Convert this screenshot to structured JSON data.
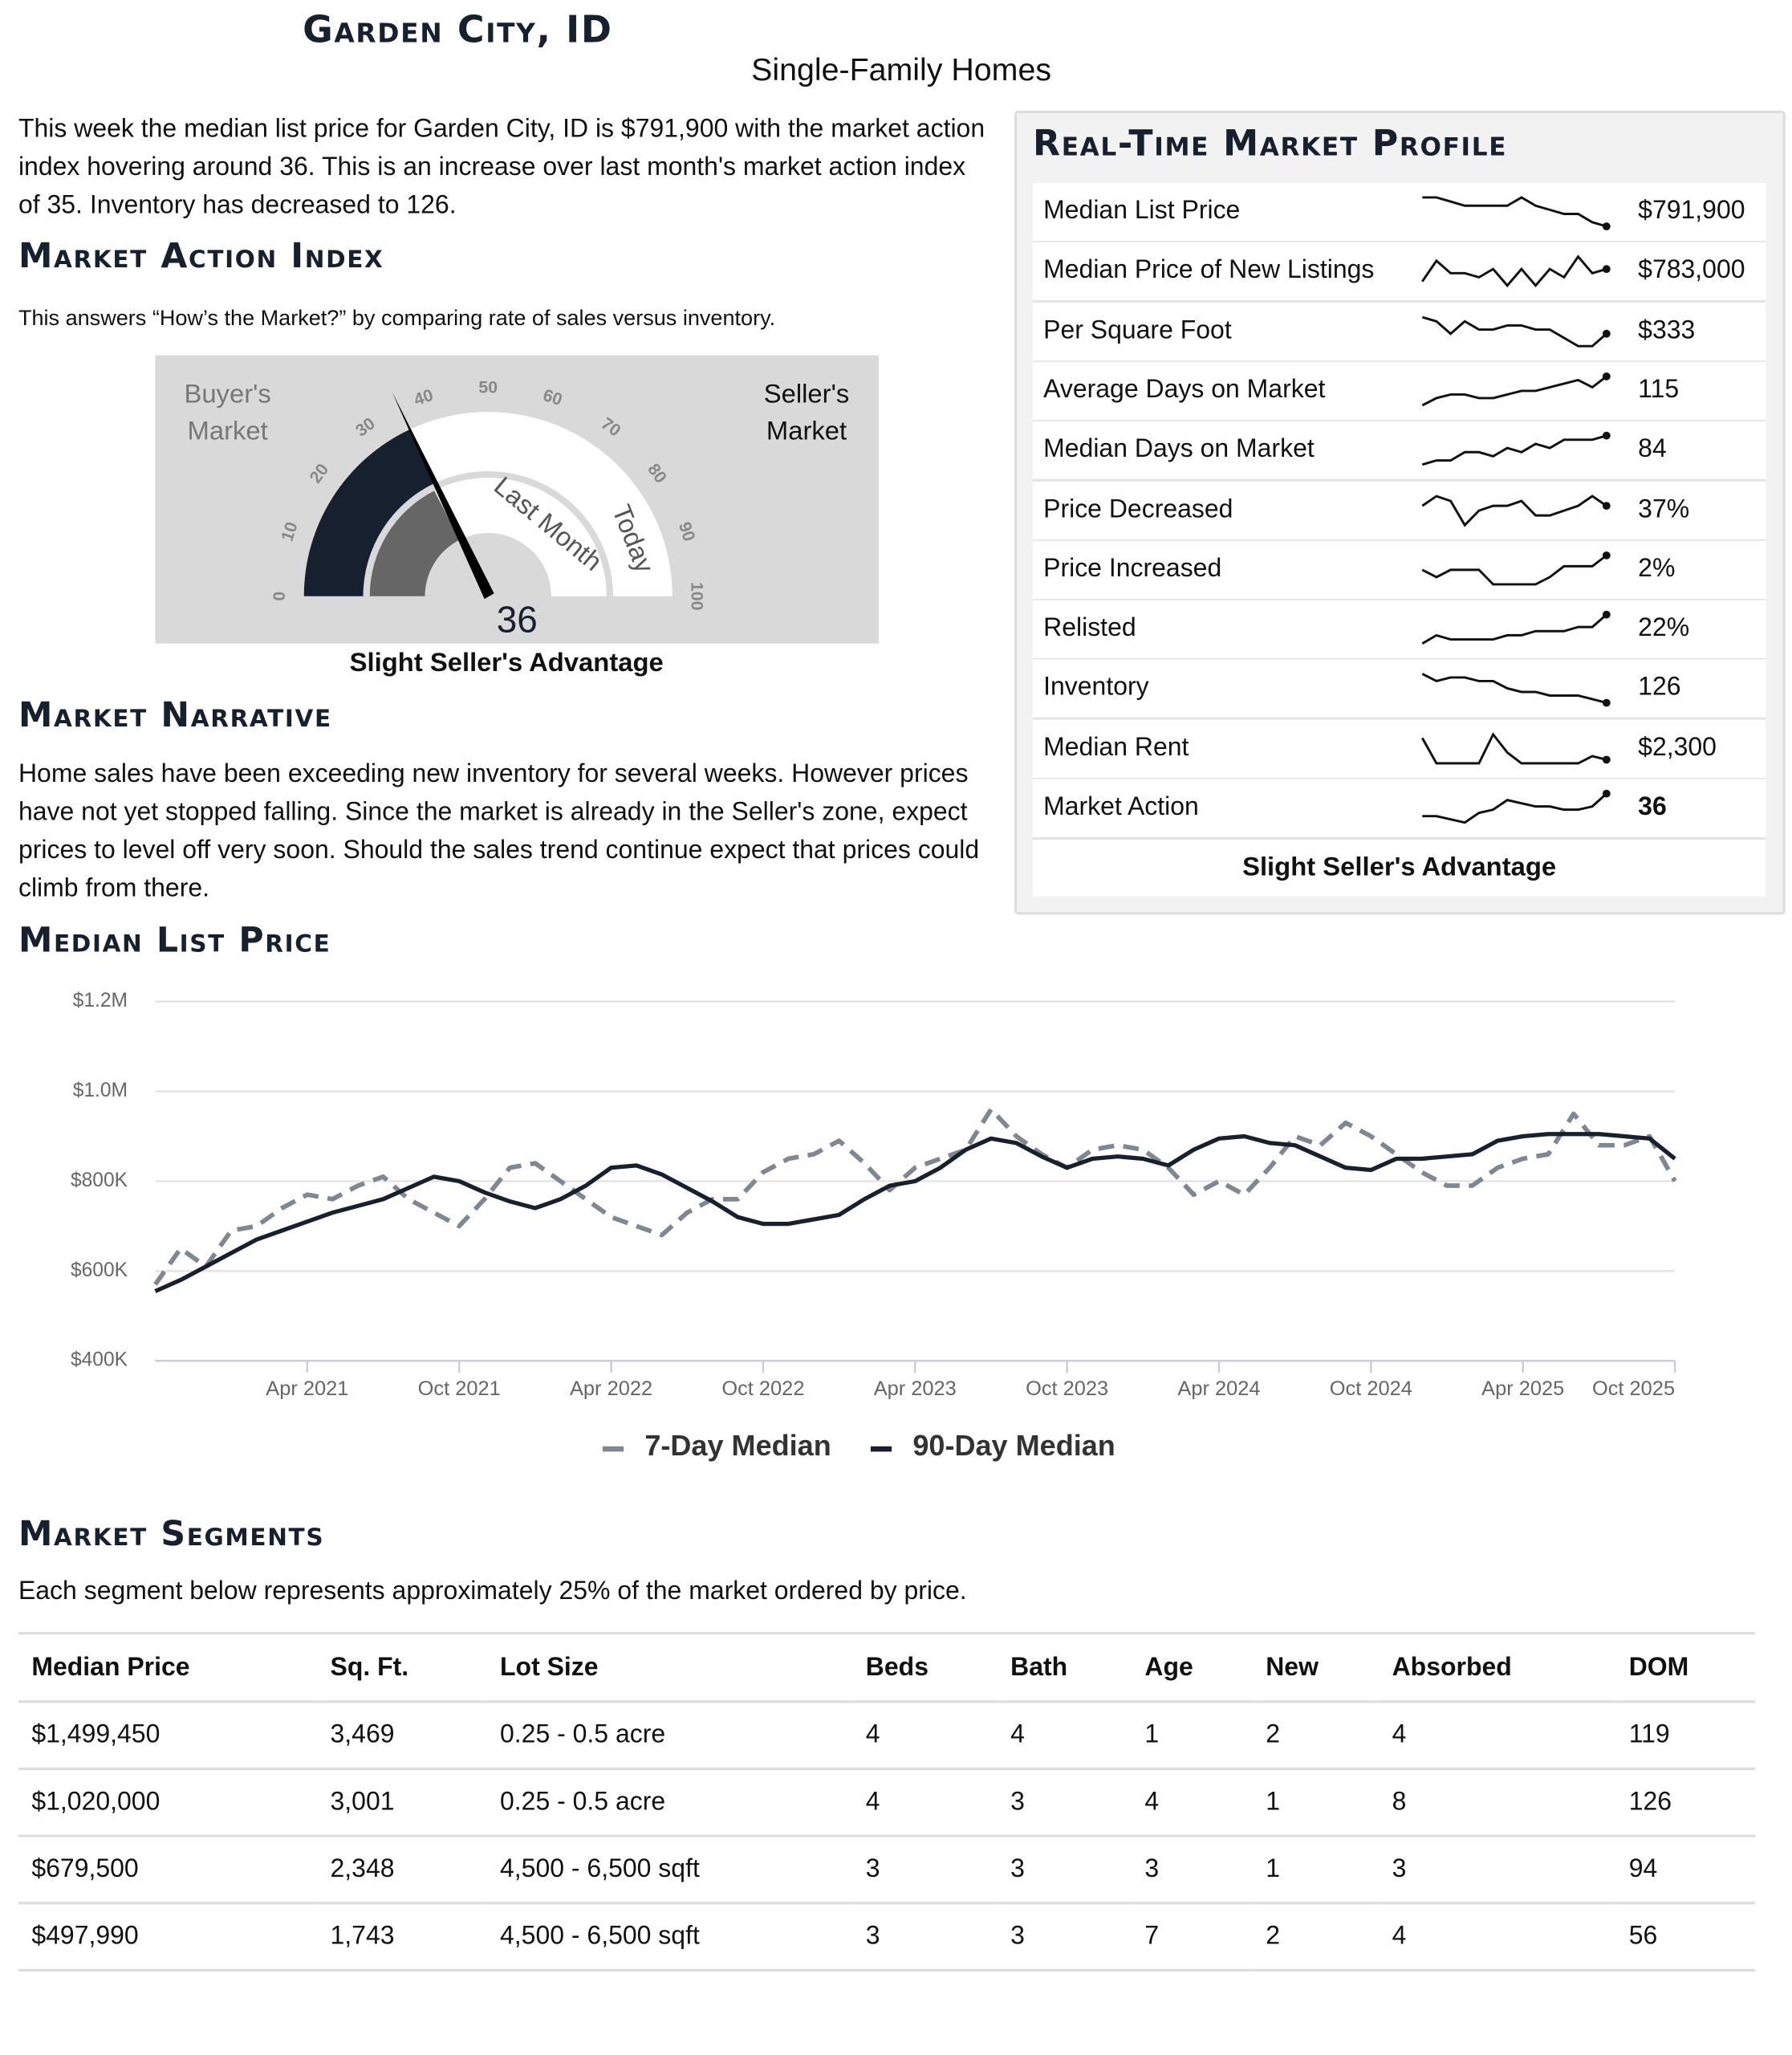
{
  "header": {
    "title": "Garden City, ID",
    "subtitle": "Single-Family Homes"
  },
  "intro": "This week the median list price for Garden City, ID is $791,900 with the market action index hovering around 36. This is an increase over last month's market action index of 35. Inventory has decreased to 126.",
  "market_action_index": {
    "heading": "Market Action Index",
    "description": "This answers “How’s the Market?” by comparing rate of sales versus inventory.",
    "gauge": {
      "buyers_label": "Buyer's Market",
      "sellers_label": "Seller's Market",
      "ticks": [
        0,
        10,
        20,
        30,
        40,
        50,
        60,
        70,
        80,
        90,
        100
      ],
      "last_month_label": "Last Month",
      "today_label": "Today",
      "last_month_value": 35,
      "value": 36
    },
    "verdict": "Slight Seller's Advantage"
  },
  "narrative": {
    "heading": "Market Narrative",
    "text": "Home sales have been exceeding new inventory for several weeks. However prices have not yet stopped falling. Since the market is already in the Seller's zone, expect prices to level off very soon. Should the sales trend continue expect that prices could climb from there."
  },
  "profile": {
    "heading": "Real-Time Market Profile",
    "rows": [
      {
        "label": "Median List Price",
        "trend": [
          9,
          9,
          8,
          7,
          7,
          7,
          7,
          9,
          7,
          6,
          5,
          5,
          3,
          2
        ],
        "value": "$791,900"
      },
      {
        "label": "Median Price of New Listings",
        "trend": [
          3,
          8,
          5,
          5,
          4,
          6,
          2,
          6,
          2,
          6,
          4,
          9,
          5,
          6
        ],
        "value": "$783,000"
      },
      {
        "label": "Per Square Foot",
        "trend": [
          9,
          8,
          5,
          8,
          6,
          6,
          7,
          7,
          6,
          6,
          4,
          2,
          2,
          5
        ],
        "value": "$333"
      },
      {
        "label": "Average Days on Market",
        "trend": [
          2,
          4,
          5,
          5,
          4,
          4,
          5,
          6,
          6,
          7,
          8,
          9,
          7,
          10
        ],
        "value": "115"
      },
      {
        "label": "Median Days on Market",
        "trend": [
          2,
          3,
          3,
          5,
          5,
          4,
          6,
          5,
          7,
          6,
          8,
          8,
          8,
          9
        ],
        "value": "84"
      },
      {
        "label": "Price Decreased",
        "trend": [
          6,
          8,
          7,
          2,
          5,
          6,
          6,
          7,
          4,
          4,
          5,
          6,
          8,
          6
        ],
        "value": "37%"
      },
      {
        "label": "Price Increased",
        "trend": [
          5,
          3,
          5,
          5,
          5,
          1,
          1,
          1,
          1,
          3,
          6,
          6,
          6,
          9
        ],
        "value": "2%"
      },
      {
        "label": "Relisted",
        "trend": [
          3,
          5,
          4,
          4,
          4,
          4,
          5,
          5,
          6,
          6,
          6,
          7,
          7,
          10
        ],
        "value": "22%"
      },
      {
        "label": "Inventory",
        "trend": [
          9,
          7,
          8,
          8,
          7,
          7,
          5,
          4,
          4,
          3,
          3,
          3,
          2,
          1
        ],
        "value": "126"
      },
      {
        "label": "Median Rent",
        "trend": [
          9,
          2,
          2,
          2,
          2,
          10,
          5,
          2,
          2,
          2,
          2,
          2,
          4,
          3
        ],
        "value": "$2,300"
      },
      {
        "label": "Market Action",
        "trend": [
          3,
          3,
          2,
          1,
          4,
          5,
          8,
          7,
          6,
          6,
          5,
          5,
          6,
          10
        ],
        "value": "36"
      }
    ],
    "footer": "Slight Seller's Advantage"
  },
  "chart_heading": "Median List Price",
  "chart_data": {
    "type": "line",
    "x": [
      "2020-10",
      "2020-11",
      "2020-12",
      "2021-01",
      "2021-02",
      "2021-03",
      "2021-04",
      "2021-05",
      "2021-06",
      "2021-07",
      "2021-08",
      "2021-09",
      "2021-10",
      "2021-11",
      "2021-12",
      "2022-01",
      "2022-02",
      "2022-03",
      "2022-04",
      "2022-05",
      "2022-06",
      "2022-07",
      "2022-08",
      "2022-09",
      "2022-10",
      "2022-11",
      "2022-12",
      "2023-01",
      "2023-02",
      "2023-03",
      "2023-04",
      "2023-05",
      "2023-06",
      "2023-07",
      "2023-08",
      "2023-09",
      "2023-10",
      "2023-11",
      "2023-12",
      "2024-01",
      "2024-02",
      "2024-03",
      "2024-04",
      "2024-05",
      "2024-06",
      "2024-07",
      "2024-08",
      "2024-09",
      "2024-10",
      "2024-11",
      "2024-12",
      "2025-01",
      "2025-02",
      "2025-03",
      "2025-04",
      "2025-05",
      "2025-06",
      "2025-07",
      "2025-08",
      "2025-09",
      "2025-10"
    ],
    "xlim": [
      "2020-10",
      "2025-10"
    ],
    "xticks": [
      {
        "value": "2021-04",
        "label": "Apr 2021"
      },
      {
        "value": "2021-10",
        "label": "Oct 2021"
      },
      {
        "value": "2022-04",
        "label": "Apr 2022"
      },
      {
        "value": "2022-10",
        "label": "Oct 2022"
      },
      {
        "value": "2023-04",
        "label": "Apr 2023"
      },
      {
        "value": "2023-10",
        "label": "Oct 2023"
      },
      {
        "value": "2024-04",
        "label": "Apr 2024"
      },
      {
        "value": "2024-10",
        "label": "Oct 2024"
      },
      {
        "value": "2025-04",
        "label": "Apr 2025"
      },
      {
        "value": "2025-10",
        "label": "Oct 2025"
      }
    ],
    "ylim": [
      400000,
      1200000
    ],
    "yticks": [
      {
        "value": 400000,
        "label": "$400K"
      },
      {
        "value": 600000,
        "label": "$600K"
      },
      {
        "value": 800000,
        "label": "$800K"
      },
      {
        "value": 1000000,
        "label": "$1.0M"
      },
      {
        "value": 1200000,
        "label": "$1.2M"
      }
    ],
    "grid": true,
    "series": [
      {
        "name": "7-Day Median",
        "color": "#7f8792",
        "dashed": true,
        "values": [
          570000,
          650000,
          610000,
          690000,
          700000,
          740000,
          770000,
          760000,
          790000,
          810000,
          760000,
          730000,
          700000,
          760000,
          830000,
          840000,
          800000,
          760000,
          720000,
          700000,
          680000,
          730000,
          760000,
          760000,
          820000,
          850000,
          860000,
          890000,
          840000,
          780000,
          830000,
          850000,
          870000,
          960000,
          900000,
          860000,
          830000,
          870000,
          880000,
          870000,
          830000,
          770000,
          800000,
          770000,
          830000,
          900000,
          880000,
          930000,
          900000,
          860000,
          820000,
          790000,
          790000,
          830000,
          850000,
          860000,
          950000,
          880000,
          880000,
          900000,
          800000
        ]
      },
      {
        "name": "90-Day Median",
        "color": "#17202e",
        "dashed": false,
        "values": [
          555000,
          580000,
          610000,
          640000,
          670000,
          690000,
          710000,
          730000,
          745000,
          760000,
          785000,
          810000,
          800000,
          775000,
          755000,
          740000,
          760000,
          790000,
          830000,
          835000,
          815000,
          785000,
          755000,
          720000,
          705000,
          705000,
          715000,
          725000,
          760000,
          790000,
          800000,
          830000,
          870000,
          895000,
          885000,
          855000,
          830000,
          850000,
          855000,
          850000,
          835000,
          870000,
          895000,
          900000,
          885000,
          880000,
          855000,
          830000,
          825000,
          850000,
          850000,
          855000,
          860000,
          890000,
          900000,
          905000,
          905000,
          905000,
          900000,
          895000,
          850000
        ]
      }
    ]
  },
  "segments": {
    "heading": "Market Segments",
    "description": "Each segment below represents approximately 25% of the market ordered by price.",
    "columns": [
      "Median Price",
      "Sq. Ft.",
      "Lot Size",
      "Beds",
      "Bath",
      "Age",
      "New",
      "Absorbed",
      "DOM"
    ],
    "rows": [
      [
        "$1,499,450",
        "3,469",
        "0.25 - 0.5 acre",
        "4",
        "4",
        "1",
        "2",
        "4",
        "119"
      ],
      [
        "$1,020,000",
        "3,001",
        "0.25 - 0.5 acre",
        "4",
        "3",
        "4",
        "1",
        "8",
        "126"
      ],
      [
        "$679,500",
        "2,348",
        "4,500 - 6,500 sqft",
        "3",
        "3",
        "3",
        "1",
        "3",
        "94"
      ],
      [
        "$497,990",
        "1,743",
        "4,500 - 6,500 sqft",
        "3",
        "3",
        "7",
        "2",
        "4",
        "56"
      ]
    ]
  }
}
